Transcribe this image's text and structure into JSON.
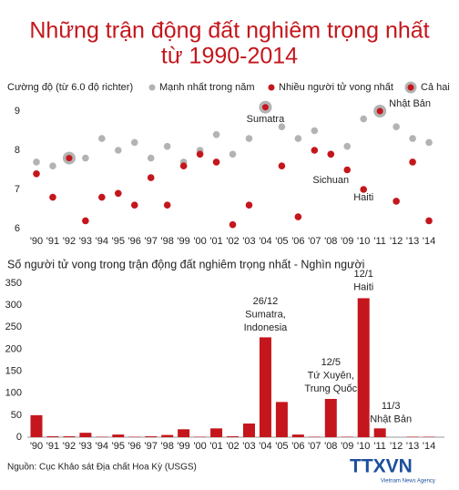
{
  "title": [
    "Những trận động đất nghiêm trọng nhất",
    "từ 1990-2014"
  ],
  "source": "Nguồn: Cục Khảo sát Địa chất Hoa Kỳ (USGS)",
  "logo": {
    "text": "TTXVN",
    "subtext": "Vietnam News Agency"
  },
  "chart_data": [
    {
      "type": "scatter",
      "y_label": "Cường độ (từ 6.0 độ richter)",
      "categories": [
        "'90",
        "'91",
        "'92",
        "'93",
        "'94",
        "'95",
        "'96",
        "'97",
        "'98",
        "'99",
        "'00",
        "'01",
        "'02",
        "'03",
        "'04",
        "'05",
        "'06",
        "'07",
        "'08",
        "'09",
        "'10",
        "'11",
        "'12",
        "'13",
        "'14"
      ],
      "series": [
        {
          "name": "Mạnh nhất trong năm",
          "color": "#b3b3b3",
          "values": [
            7.7,
            7.6,
            null,
            7.8,
            8.3,
            8.0,
            8.2,
            7.8,
            8.1,
            7.7,
            8.0,
            8.4,
            7.9,
            8.3,
            null,
            8.6,
            8.3,
            8.5,
            7.9,
            8.1,
            8.8,
            null,
            8.6,
            8.3,
            8.2
          ]
        },
        {
          "name": "Nhiều người tử vong nhất",
          "color": "#c4161c",
          "values": [
            7.4,
            6.8,
            null,
            6.2,
            6.8,
            6.9,
            6.6,
            7.3,
            6.6,
            7.6,
            7.9,
            7.7,
            6.1,
            6.6,
            null,
            7.6,
            6.3,
            8.0,
            7.9,
            7.5,
            7.0,
            null,
            6.7,
            7.7,
            6.2
          ]
        },
        {
          "name": "Cả hai",
          "color": "#c4161c",
          "values": [
            null,
            null,
            7.8,
            null,
            null,
            null,
            null,
            null,
            null,
            null,
            null,
            null,
            null,
            null,
            9.1,
            null,
            null,
            null,
            null,
            null,
            null,
            9.0,
            null,
            null,
            null
          ]
        }
      ],
      "ylim": [
        5.9,
        9.4
      ],
      "yticks": [
        6,
        7,
        8,
        9
      ],
      "grid": false,
      "annotations": [
        "Sumatra",
        "Nhật Bản",
        "Sichuan",
        "Haiti"
      ]
    },
    {
      "type": "bar",
      "title": "Số người tử vong trong trận động đất nghiêm trọng nhất - Nghìn người",
      "categories": [
        "'90",
        "'91",
        "'92",
        "'93",
        "'94",
        "'95",
        "'96",
        "'97",
        "'98",
        "'99",
        "'00",
        "'01",
        "'02",
        "'03",
        "'04",
        "'05",
        "'06",
        "'07",
        "'08",
        "'09",
        "'10",
        "'11",
        "'12",
        "'13",
        "'14"
      ],
      "values": [
        50,
        2,
        2,
        10,
        1,
        6,
        1,
        2,
        5,
        18,
        1,
        20,
        2,
        31,
        227,
        80,
        6,
        1,
        87,
        1,
        316,
        20,
        0,
        1,
        1
      ],
      "color": "#c4161c",
      "ylim": [
        0,
        350
      ],
      "yticks": [
        0,
        50,
        100,
        150,
        200,
        250,
        300,
        350
      ],
      "grid": false,
      "annotations": [
        {
          "lines": [
            "26/12",
            "Sumatra,",
            "Indonesia"
          ]
        },
        {
          "lines": [
            "12/1",
            "Haiti"
          ]
        },
        {
          "lines": [
            "12/5",
            "Tứ Xuyên,",
            "Trung Quốc"
          ]
        },
        {
          "lines": [
            "11/3",
            "Nhật Bản"
          ]
        }
      ]
    }
  ]
}
